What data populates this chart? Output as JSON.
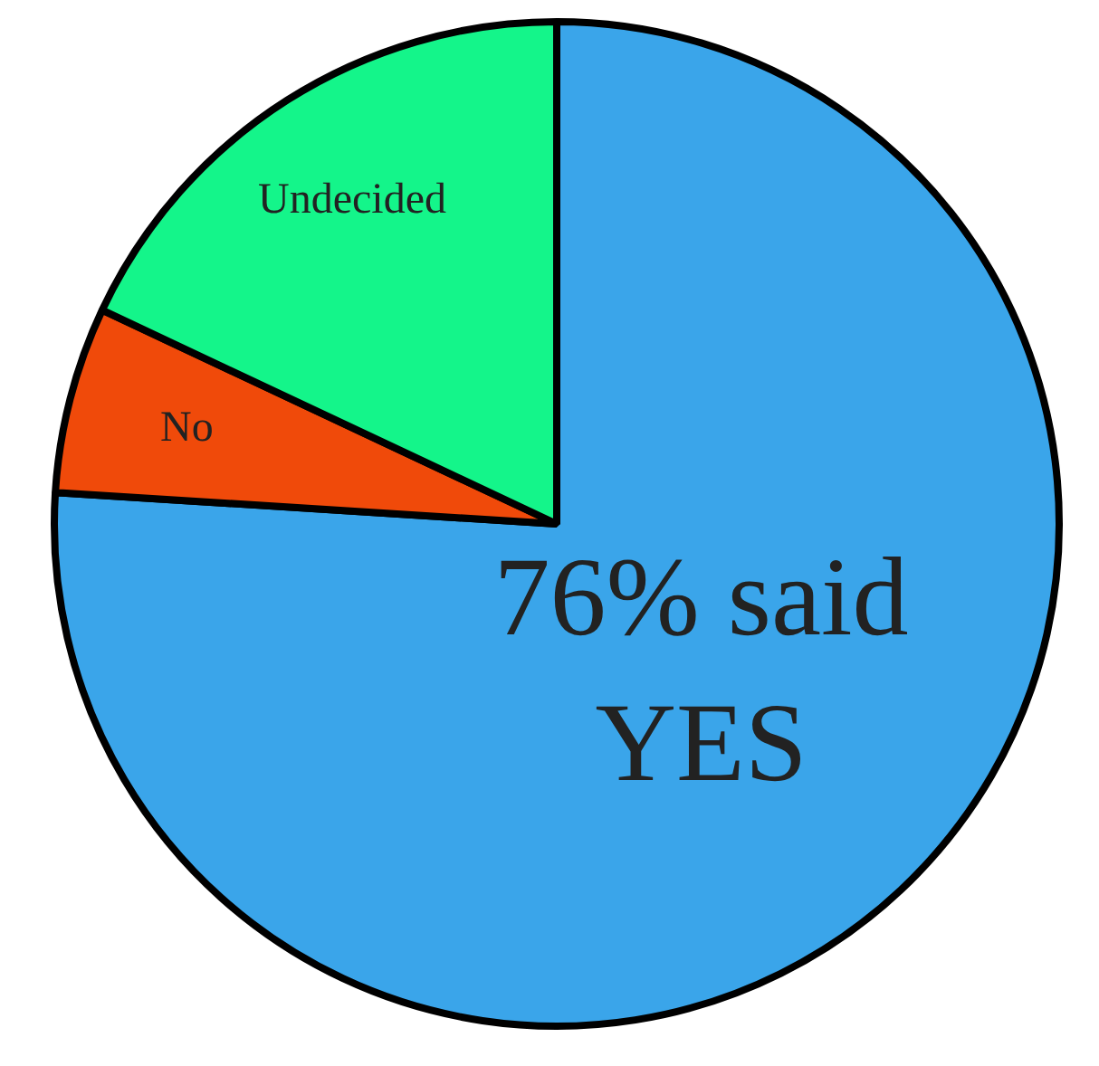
{
  "chart_data": {
    "type": "pie",
    "categories": [
      "76% said YES",
      "No",
      "Undecided"
    ],
    "values": [
      76,
      6,
      18
    ],
    "colors": [
      "#3aa5ea",
      "#f04a0a",
      "#14f58a"
    ],
    "legend": false
  }
}
